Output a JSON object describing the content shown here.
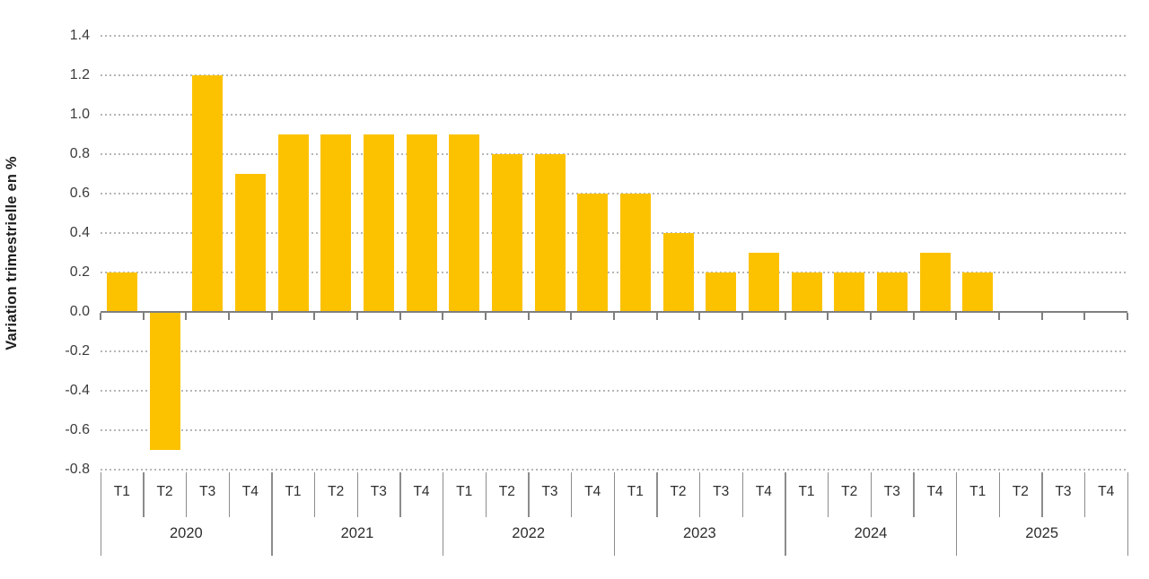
{
  "chart_data": {
    "type": "bar",
    "title": "",
    "xlabel": "",
    "ylabel": "Variation trimestrielle en %",
    "ylim": [
      -0.8,
      1.4
    ],
    "ytick_step": 0.2,
    "ytick_labels": [
      "1.4",
      "1.2",
      "1.0",
      "0.8",
      "0.6",
      "0.4",
      "0.2",
      "0.0",
      "-0.2",
      "-0.4",
      "-0.6",
      "-0.8"
    ],
    "grid": "horizontal-dotted",
    "legend": "none",
    "bar_color": "#fcc200",
    "categories": [
      "T1",
      "T2",
      "T3",
      "T4",
      "T1",
      "T2",
      "T3",
      "T4",
      "T1",
      "T2",
      "T3",
      "T4",
      "T1",
      "T2",
      "T3",
      "T4",
      "T1",
      "T2",
      "T3",
      "T4",
      "T1",
      "T2",
      "T3",
      "T4"
    ],
    "years": [
      {
        "label": "2020",
        "quarters": [
          "T1",
          "T2",
          "T3",
          "T4"
        ],
        "values": [
          0.2,
          -0.7,
          1.2,
          0.7
        ]
      },
      {
        "label": "2021",
        "quarters": [
          "T1",
          "T2",
          "T3",
          "T4"
        ],
        "values": [
          0.9,
          0.9,
          0.9,
          0.9
        ]
      },
      {
        "label": "2022",
        "quarters": [
          "T1",
          "T2",
          "T3",
          "T4"
        ],
        "values": [
          0.9,
          0.8,
          0.8,
          0.6
        ]
      },
      {
        "label": "2023",
        "quarters": [
          "T1",
          "T2",
          "T3",
          "T4"
        ],
        "values": [
          0.6,
          0.4,
          0.2,
          0.3
        ]
      },
      {
        "label": "2024",
        "quarters": [
          "T1",
          "T2",
          "T3",
          "T4"
        ],
        "values": [
          0.2,
          0.2,
          0.2,
          0.3
        ]
      },
      {
        "label": "2025",
        "quarters": [
          "T1",
          "T2",
          "T3",
          "T4"
        ],
        "values": [
          0.2,
          null,
          null,
          null
        ]
      }
    ]
  },
  "colors": {
    "bar": "#fcc200",
    "gridline": "#b6b6b6",
    "axis": "#7f7f7f",
    "text": "#2e2e2e"
  }
}
